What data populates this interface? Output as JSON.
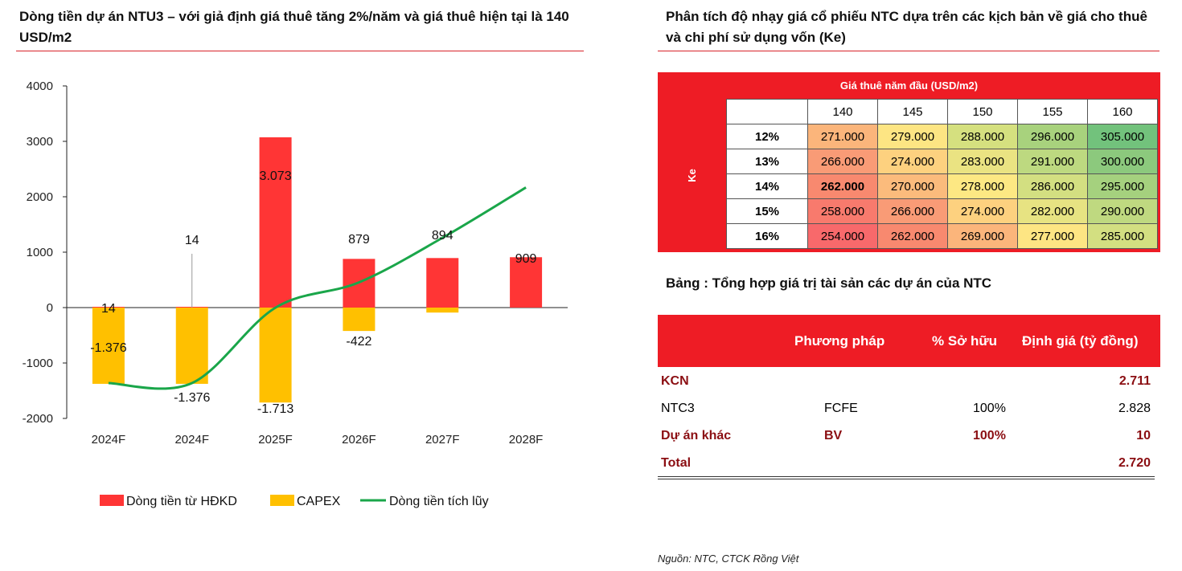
{
  "left_panel": {
    "title": "Dòng tiền dự án NTU3 – với giả định giá thuê tăng 2%/năm và giá thuê hiện tại là 140 USD/m2"
  },
  "chart_data": {
    "type": "bar",
    "title": "Dòng tiền dự án NTU3 – với giả định giá thuê tăng 2%/năm và giá thuê hiện tại là 140 USD/m2",
    "categories": [
      "2024F",
      "2024F",
      "2025F",
      "2026F",
      "2027F",
      "2028F"
    ],
    "y_ticks": [
      "4000",
      "3000",
      "2000",
      "1000",
      "0",
      "-1000",
      "-2000"
    ],
    "ylim": [
      -2000,
      4000
    ],
    "series": [
      {
        "name": "Dòng tiền từ HĐKD",
        "kind": "bar",
        "color": "#ff3535",
        "values": [
          14,
          14,
          3073,
          879,
          894,
          909
        ],
        "labels": [
          "14",
          "14",
          "3.073",
          "879",
          "894",
          "909"
        ]
      },
      {
        "name": "CAPEX",
        "kind": "bar",
        "color": "#ffc000",
        "values": [
          -1376,
          -1376,
          -1713,
          -422,
          -90,
          0
        ],
        "labels": [
          "-1.376",
          "-1.376",
          "-1.713",
          "-422",
          "",
          ""
        ]
      },
      {
        "name": "Dòng tiền tích lũy",
        "kind": "line",
        "color": "#1aa64a",
        "values": [
          -1362,
          -1362,
          -2,
          455,
          1259,
          2168
        ]
      }
    ],
    "legend_position": "bottom",
    "grid": false
  },
  "right_panel": {
    "title": "Phân tích độ nhạy giá cổ phiếu NTC dựa trên các kịch bản về giá cho thuê và chi phí sử dụng vốn (Ke)",
    "sensitivity": {
      "header": "Giá thuê năm đầu (USD/m2)",
      "row_axis_label": "Ke",
      "columns": [
        "140",
        "145",
        "150",
        "155",
        "160"
      ],
      "rows": [
        {
          "label": "12%",
          "values": [
            "271.000",
            "279.000",
            "288.000",
            "296.000",
            "305.000"
          ],
          "colors": [
            "#fbb57b",
            "#fde583",
            "#d5e07f",
            "#a8d27d",
            "#72c27c"
          ]
        },
        {
          "label": "13%",
          "values": [
            "266.000",
            "274.000",
            "283.000",
            "291.000",
            "300.000"
          ],
          "colors": [
            "#f99b76",
            "#fdd17f",
            "#eae382",
            "#bdd980",
            "#8cc97d"
          ]
        },
        {
          "label": "14%",
          "values": [
            "262.000",
            "270.000",
            "278.000",
            "286.000",
            "295.000"
          ],
          "colors": [
            "#f8896f",
            "#fbbb7c",
            "#fde883",
            "#d3df81",
            "#a5d17e"
          ]
        },
        {
          "label": "15%",
          "values": [
            "258.000",
            "266.000",
            "274.000",
            "282.000",
            "290.000"
          ],
          "colors": [
            "#f87a6d",
            "#f99b76",
            "#fdd17f",
            "#e7e382",
            "#bfd980"
          ]
        },
        {
          "label": "16%",
          "values": [
            "254.000",
            "262.000",
            "269.000",
            "277.000",
            "285.000"
          ],
          "colors": [
            "#f8696b",
            "#f8896f",
            "#fbb57b",
            "#fde583",
            "#d3df81"
          ]
        }
      ],
      "highlight": "262.000"
    },
    "summary_title": "Bảng : Tổng hợp giá trị tài sản các dự án của NTC",
    "summary": {
      "headers": [
        "Phương pháp",
        "% Sở hữu",
        "Định giá (tỷ đồng)"
      ],
      "rows": [
        {
          "name": "KCN",
          "method": "",
          "own": "",
          "value": "2.711",
          "style": "bold-red"
        },
        {
          "name": "NTC3",
          "method": "FCFE",
          "own": "100%",
          "value": "2.828",
          "style": "normal"
        },
        {
          "name": "Dự án khác",
          "method": "BV",
          "own": "100%",
          "value": "10",
          "style": "bold-red"
        },
        {
          "name": "Total",
          "method": "",
          "own": "",
          "value": "2.720",
          "style": "bold-red"
        }
      ]
    },
    "source": "Nguồn: NTC, CTCK Rồng Việt"
  }
}
